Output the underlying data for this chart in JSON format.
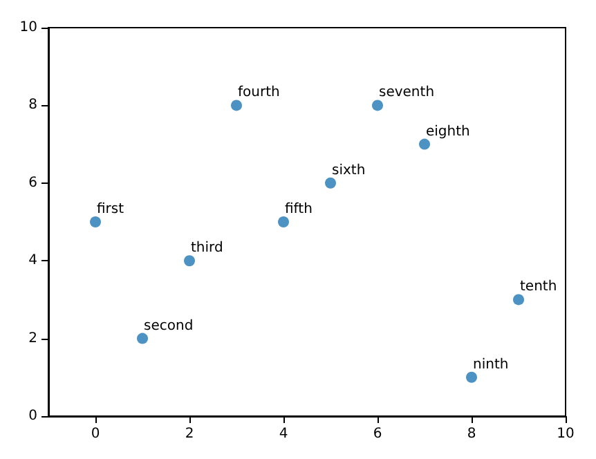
{
  "chart_data": {
    "type": "scatter",
    "x": [
      0,
      1,
      2,
      3,
      4,
      5,
      6,
      7,
      8,
      9
    ],
    "values": [
      5,
      2,
      4,
      8,
      5,
      6,
      8,
      7,
      1,
      3
    ],
    "color": "#1f77b4",
    "marker": "circle",
    "grid": false,
    "xlim": [
      -1,
      10
    ],
    "xticks": [
      0,
      2,
      4,
      6,
      8,
      10
    ],
    "ylim": [
      0,
      10
    ],
    "yticks": [
      0,
      2,
      4,
      6,
      8,
      10
    ],
    "annotations": [
      {
        "text": "first",
        "x": 0,
        "y": 5
      },
      {
        "text": "second",
        "x": 1,
        "y": 2
      },
      {
        "text": "third",
        "x": 2,
        "y": 4
      },
      {
        "text": "fourth",
        "x": 3,
        "y": 8
      },
      {
        "text": "fifth",
        "x": 4,
        "y": 5
      },
      {
        "text": "sixth",
        "x": 5,
        "y": 6
      },
      {
        "text": "seventh",
        "x": 6,
        "y": 8
      },
      {
        "text": "eighth",
        "x": 7,
        "y": 7
      },
      {
        "text": "ninth",
        "x": 8,
        "y": 1
      },
      {
        "text": "tenth",
        "x": 9,
        "y": 3
      }
    ]
  }
}
